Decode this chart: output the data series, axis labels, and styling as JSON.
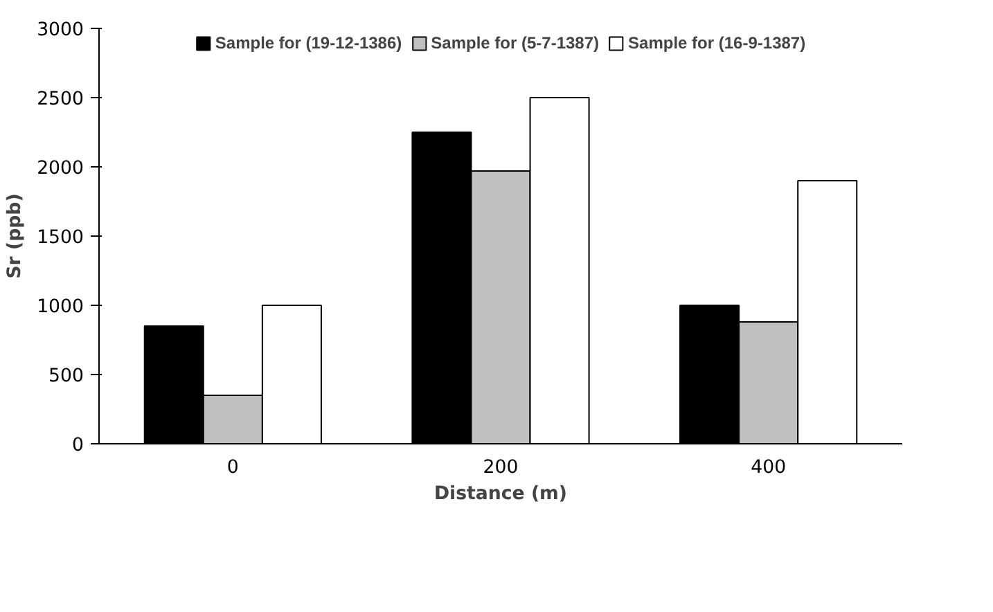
{
  "chart_data": {
    "type": "bar",
    "xlabel": "Distance (m)",
    "ylabel": "Sr (ppb)",
    "categories": [
      "0",
      "200",
      "400"
    ],
    "series": [
      {
        "name": "Sample for (19-12-1386)",
        "color": "#000000",
        "values": [
          850,
          2250,
          1000
        ]
      },
      {
        "name": "Sample for (5-7-1387)",
        "color": "#c0c0c0",
        "values": [
          350,
          1970,
          880
        ]
      },
      {
        "name": "Sample for (16-9-1387)",
        "color": "#ffffff",
        "values": [
          1000,
          2500,
          1900
        ]
      }
    ],
    "ylim": [
      0,
      3000
    ],
    "yticks": [
      0,
      500,
      1000,
      1500,
      2000,
      2500,
      3000
    ],
    "grid": false,
    "legend": "top"
  }
}
